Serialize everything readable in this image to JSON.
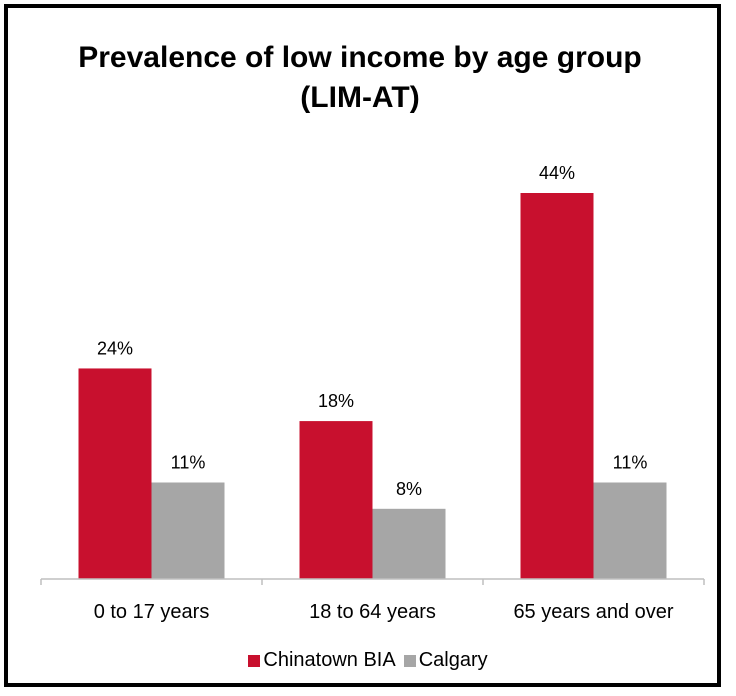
{
  "chart_data": {
    "type": "bar",
    "title": "Prevalence of low income by age group (LIM-AT)",
    "categories": [
      "0 to 17 years",
      "18 to 64 years",
      "65 years and over"
    ],
    "series": [
      {
        "name": "Chinatown BIA",
        "values": [
          24,
          18,
          44
        ],
        "labels": [
          "24%",
          "18%",
          "44%"
        ],
        "color": "#c8102e"
      },
      {
        "name": "Calgary",
        "values": [
          11,
          8,
          11
        ],
        "labels": [
          "11%",
          "8%",
          "11%"
        ],
        "color": "#a6a6a6"
      }
    ],
    "xlabel": "",
    "ylabel": "",
    "ylim": [
      0,
      44
    ],
    "grid": false,
    "legend_position": "bottom",
    "axis_color": "#bfbfbf"
  }
}
